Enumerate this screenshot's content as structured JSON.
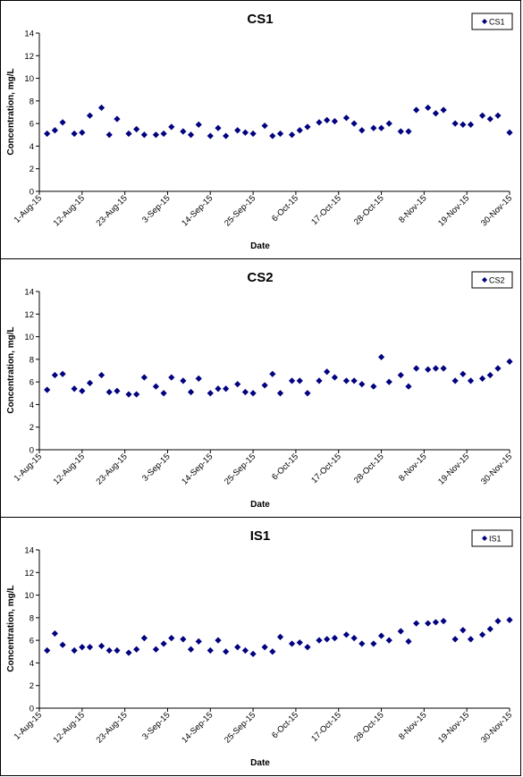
{
  "chart_data": [
    {
      "type": "scatter",
      "title": "CS1",
      "xlabel": "Date",
      "ylabel": "Concentration, mg/L",
      "ylim": [
        0,
        14
      ],
      "yticks": [
        "0",
        "2",
        "4",
        "6",
        "8",
        "10",
        "12",
        "14"
      ],
      "xlim": [
        "2015-08-01",
        "2015-11-30"
      ],
      "xticks": [
        "1-Aug-15",
        "12-Aug-15",
        "23-Aug-15",
        "3-Sep-15",
        "14-Sep-15",
        "25-Sep-15",
        "6-Oct-15",
        "17-Oct-15",
        "28-Oct-15",
        "8-Nov-15",
        "19-Nov-15",
        "30-Nov-15"
      ],
      "grid": false,
      "legend": "top-right",
      "marker_color": "#000080",
      "series": [
        {
          "name": "CS1",
          "x": [
            "2015-08-03",
            "2015-08-05",
            "2015-08-07",
            "2015-08-10",
            "2015-08-12",
            "2015-08-14",
            "2015-08-17",
            "2015-08-19",
            "2015-08-21",
            "2015-08-24",
            "2015-08-26",
            "2015-08-28",
            "2015-08-31",
            "2015-09-02",
            "2015-09-04",
            "2015-09-07",
            "2015-09-09",
            "2015-09-11",
            "2015-09-14",
            "2015-09-16",
            "2015-09-18",
            "2015-09-21",
            "2015-09-23",
            "2015-09-25",
            "2015-09-28",
            "2015-09-30",
            "2015-10-02",
            "2015-10-05",
            "2015-10-07",
            "2015-10-09",
            "2015-10-12",
            "2015-10-14",
            "2015-10-16",
            "2015-10-19",
            "2015-10-21",
            "2015-10-23",
            "2015-10-26",
            "2015-10-28",
            "2015-10-30",
            "2015-11-02",
            "2015-11-04",
            "2015-11-06",
            "2015-11-09",
            "2015-11-11",
            "2015-11-13",
            "2015-11-16",
            "2015-11-18",
            "2015-11-20",
            "2015-11-23",
            "2015-11-25",
            "2015-11-27",
            "2015-11-30"
          ],
          "y": [
            5.1,
            5.4,
            6.1,
            5.1,
            5.2,
            6.7,
            7.4,
            5.0,
            6.4,
            5.1,
            5.5,
            5.0,
            5.0,
            5.1,
            5.7,
            5.3,
            5.0,
            5.9,
            4.9,
            5.6,
            4.9,
            5.4,
            5.2,
            5.1,
            5.8,
            4.9,
            5.1,
            5.0,
            5.4,
            5.7,
            6.1,
            6.3,
            6.2,
            6.5,
            6.0,
            5.4,
            5.6,
            5.6,
            6.0,
            5.3,
            5.3,
            7.2,
            7.4,
            6.9,
            7.2,
            6.0,
            5.9,
            5.9,
            6.7,
            6.4,
            6.7,
            5.2
          ]
        }
      ]
    },
    {
      "type": "scatter",
      "title": "CS2",
      "xlabel": "Date",
      "ylabel": "Concentration, mg/L",
      "ylim": [
        0,
        14
      ],
      "yticks": [
        "0",
        "2",
        "4",
        "6",
        "8",
        "10",
        "12",
        "14"
      ],
      "xlim": [
        "2015-08-01",
        "2015-11-30"
      ],
      "xticks": [
        "1-Aug-15",
        "12-Aug-15",
        "23-Aug-15",
        "3-Sep-15",
        "14-Sep-15",
        "25-Sep-15",
        "6-Oct-15",
        "17-Oct-15",
        "28-Oct-15",
        "8-Nov-15",
        "19-Nov-15",
        "30-Nov-15"
      ],
      "grid": false,
      "legend": "top-right",
      "marker_color": "#000080",
      "series": [
        {
          "name": "CS2",
          "x": [
            "2015-08-03",
            "2015-08-05",
            "2015-08-07",
            "2015-08-10",
            "2015-08-12",
            "2015-08-14",
            "2015-08-17",
            "2015-08-19",
            "2015-08-21",
            "2015-08-24",
            "2015-08-26",
            "2015-08-28",
            "2015-08-31",
            "2015-09-02",
            "2015-09-04",
            "2015-09-07",
            "2015-09-09",
            "2015-09-11",
            "2015-09-14",
            "2015-09-16",
            "2015-09-18",
            "2015-09-21",
            "2015-09-23",
            "2015-09-25",
            "2015-09-28",
            "2015-09-30",
            "2015-10-02",
            "2015-10-05",
            "2015-10-07",
            "2015-10-09",
            "2015-10-12",
            "2015-10-14",
            "2015-10-16",
            "2015-10-19",
            "2015-10-21",
            "2015-10-23",
            "2015-10-26",
            "2015-10-28",
            "2015-10-30",
            "2015-11-02",
            "2015-11-04",
            "2015-11-06",
            "2015-11-09",
            "2015-11-11",
            "2015-11-13",
            "2015-11-16",
            "2015-11-18",
            "2015-11-20",
            "2015-11-23",
            "2015-11-25",
            "2015-11-27",
            "2015-11-30"
          ],
          "y": [
            5.3,
            6.6,
            6.7,
            5.4,
            5.2,
            5.9,
            6.6,
            5.1,
            5.2,
            4.9,
            4.9,
            6.4,
            5.6,
            5.0,
            6.4,
            6.1,
            5.1,
            6.3,
            5.0,
            5.4,
            5.4,
            5.8,
            5.1,
            5.0,
            5.7,
            6.7,
            5.0,
            6.1,
            6.1,
            5.0,
            6.1,
            6.9,
            6.4,
            6.1,
            6.1,
            5.8,
            5.6,
            8.2,
            6.0,
            6.6,
            5.6,
            7.2,
            7.1,
            7.2,
            7.2,
            6.1,
            6.7,
            6.1,
            6.3,
            6.6,
            7.2,
            7.8
          ]
        }
      ]
    },
    {
      "type": "scatter",
      "title": "IS1",
      "xlabel": "Date",
      "ylabel": "Concentration, mg/L",
      "ylim": [
        0,
        14
      ],
      "yticks": [
        "0",
        "2",
        "4",
        "6",
        "8",
        "10",
        "12",
        "14"
      ],
      "xlim": [
        "2015-08-01",
        "2015-11-30"
      ],
      "xticks": [
        "1-Aug-15",
        "12-Aug-15",
        "23-Aug-15",
        "3-Sep-15",
        "14-Sep-15",
        "25-Sep-15",
        "6-Oct-15",
        "17-Oct-15",
        "28-Oct-15",
        "8-Nov-15",
        "19-Nov-15",
        "30-Nov-15"
      ],
      "grid": false,
      "legend": "top-right",
      "marker_color": "#000080",
      "series": [
        {
          "name": "IS1",
          "x": [
            "2015-08-03",
            "2015-08-05",
            "2015-08-07",
            "2015-08-10",
            "2015-08-12",
            "2015-08-14",
            "2015-08-17",
            "2015-08-19",
            "2015-08-21",
            "2015-08-24",
            "2015-08-26",
            "2015-08-28",
            "2015-08-31",
            "2015-09-02",
            "2015-09-04",
            "2015-09-07",
            "2015-09-09",
            "2015-09-11",
            "2015-09-14",
            "2015-09-16",
            "2015-09-18",
            "2015-09-21",
            "2015-09-23",
            "2015-09-25",
            "2015-09-28",
            "2015-09-30",
            "2015-10-02",
            "2015-10-05",
            "2015-10-07",
            "2015-10-09",
            "2015-10-12",
            "2015-10-14",
            "2015-10-16",
            "2015-10-19",
            "2015-10-21",
            "2015-10-23",
            "2015-10-26",
            "2015-10-28",
            "2015-10-30",
            "2015-11-02",
            "2015-11-04",
            "2015-11-06",
            "2015-11-09",
            "2015-11-11",
            "2015-11-13",
            "2015-11-16",
            "2015-11-18",
            "2015-11-20",
            "2015-11-23",
            "2015-11-25",
            "2015-11-27",
            "2015-11-30"
          ],
          "y": [
            5.1,
            6.6,
            5.6,
            5.1,
            5.4,
            5.4,
            5.5,
            5.1,
            5.1,
            4.9,
            5.2,
            6.2,
            5.2,
            5.7,
            6.2,
            6.1,
            5.2,
            5.9,
            5.1,
            6.0,
            5.0,
            5.4,
            5.1,
            4.8,
            5.4,
            5.0,
            6.3,
            5.7,
            5.8,
            5.4,
            6.0,
            6.1,
            6.2,
            6.5,
            6.2,
            5.7,
            5.7,
            6.4,
            6.0,
            6.8,
            5.9,
            7.5,
            7.5,
            7.6,
            7.7,
            6.1,
            6.9,
            6.1,
            6.5,
            7.0,
            7.7,
            7.8
          ]
        }
      ]
    }
  ]
}
